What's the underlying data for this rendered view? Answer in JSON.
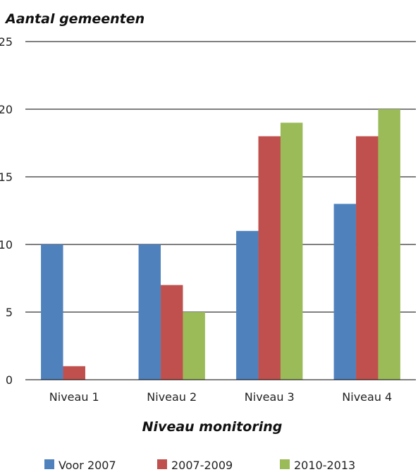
{
  "chart_data": {
    "type": "bar",
    "ylabel": "Aantal gemeenten",
    "xlabel": "Niveau monitoring",
    "categories": [
      "Niveau 1",
      "Niveau 2",
      "Niveau 3",
      "Niveau 4"
    ],
    "series": [
      {
        "name": "Voor 2007",
        "color": "#4f81bd",
        "values": [
          10,
          10,
          11,
          13
        ]
      },
      {
        "name": "2007-2009",
        "color": "#c0504d",
        "values": [
          1,
          7,
          18,
          18
        ]
      },
      {
        "name": "2010-2013",
        "color": "#9bbb59",
        "values": [
          0,
          5,
          19,
          20
        ]
      }
    ],
    "ylim": [
      0,
      25
    ],
    "yticks": [
      0,
      5,
      10,
      15,
      20,
      25
    ],
    "grid": true,
    "legend": "bottom"
  }
}
